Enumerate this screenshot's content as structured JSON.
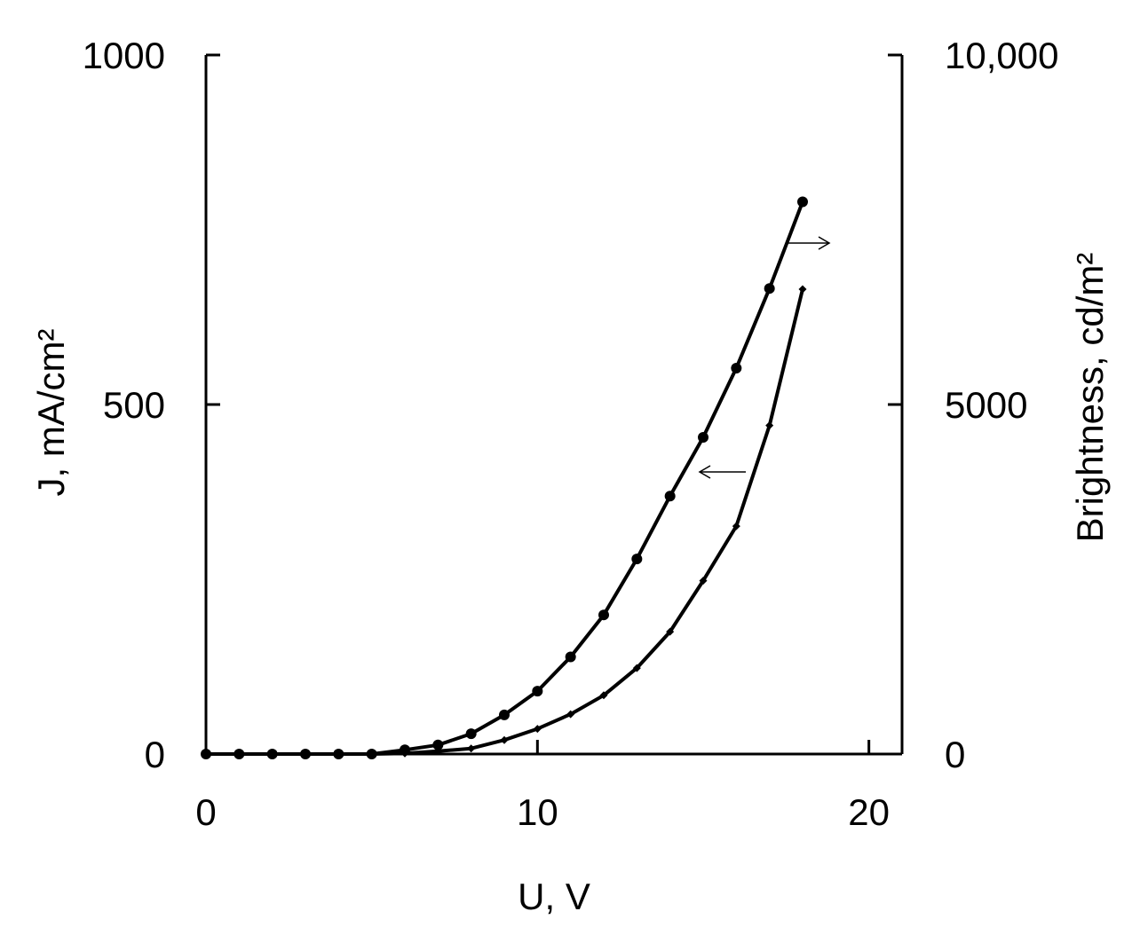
{
  "chart_data": {
    "type": "line",
    "xlabel": "U, V",
    "ylabel": "J, mA/cm²",
    "y2label": "Brightness, cd/m²",
    "xlim": [
      0,
      21
    ],
    "ylim": [
      0,
      1000
    ],
    "y2lim": [
      0,
      10000
    ],
    "x_ticks": [
      "0",
      "10",
      "20"
    ],
    "y_ticks": [
      "0",
      "500",
      "1000"
    ],
    "y2_ticks": [
      "0",
      "5000",
      "10,000"
    ],
    "grid": false,
    "series": [
      {
        "axis": "right",
        "marker": "circle",
        "x": [
          0,
          1,
          2,
          3,
          4,
          5,
          6,
          7,
          8,
          9,
          10,
          11,
          12,
          13,
          14,
          15,
          16,
          17,
          18
        ],
        "y": [
          0,
          0,
          0,
          0,
          0,
          0,
          60,
          130,
          290,
          560,
          900,
          1390,
          1990,
          2790,
          3690,
          4530,
          5520,
          6660,
          7900
        ]
      },
      {
        "axis": "left",
        "marker": "diamond",
        "x": [
          0,
          1,
          2,
          3,
          4,
          5,
          6,
          7,
          8,
          9,
          10,
          11,
          12,
          13,
          14,
          15,
          16,
          17,
          18
        ],
        "y": [
          0,
          0,
          0,
          0,
          0,
          0,
          1,
          4,
          8,
          20,
          36,
          57,
          84,
          123,
          175,
          248,
          326,
          470,
          665
        ]
      }
    ],
    "annotations": [
      {
        "type": "arrow",
        "direction": "right",
        "series": 0
      },
      {
        "type": "arrow",
        "direction": "left",
        "series": 1
      }
    ]
  }
}
